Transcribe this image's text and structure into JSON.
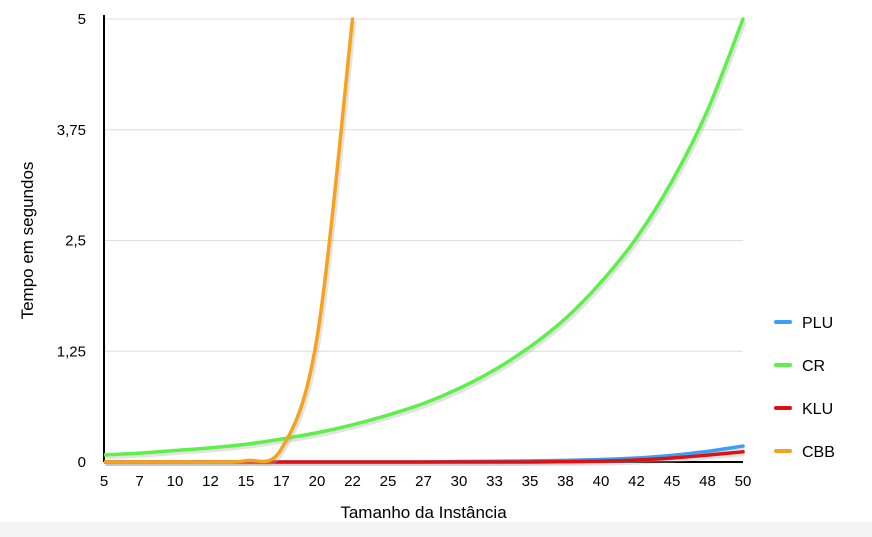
{
  "chart_data": {
    "type": "line",
    "title": "",
    "xlabel": "Tamanho da Instância",
    "ylabel": "Tempo em segundos",
    "categories": [
      "5",
      "7",
      "10",
      "12",
      "15",
      "17",
      "20",
      "22",
      "25",
      "27",
      "30",
      "33",
      "35",
      "38",
      "40",
      "42",
      "45",
      "48",
      "50"
    ],
    "y_ticks": [
      "0",
      "1,25",
      "2,5",
      "3,75",
      "5"
    ],
    "ylim": [
      0,
      5
    ],
    "grid": true,
    "legend_position": "right",
    "series": [
      {
        "name": "PLU",
        "color": "#3a9ff5",
        "values": [
          0.0,
          0.0,
          0.0,
          0.0,
          0.0,
          0.0,
          0.0,
          0.0,
          0.0,
          0.0,
          0.005,
          0.008,
          0.012,
          0.018,
          0.028,
          0.045,
          0.075,
          0.12,
          0.18
        ]
      },
      {
        "name": "CR",
        "color": "#5cf048",
        "values": [
          0.08,
          0.1,
          0.13,
          0.16,
          0.2,
          0.26,
          0.33,
          0.42,
          0.53,
          0.66,
          0.83,
          1.04,
          1.3,
          1.62,
          2.03,
          2.53,
          3.17,
          3.97,
          5.0
        ]
      },
      {
        "name": "KLU",
        "color": "#e01010",
        "values": [
          0.0,
          0.0,
          0.0,
          0.0,
          0.0,
          0.0,
          0.0,
          0.0,
          0.0,
          0.0,
          0.0,
          0.0,
          0.0,
          0.004,
          0.01,
          0.022,
          0.045,
          0.078,
          0.115
        ]
      },
      {
        "name": "CBB",
        "color": "#f7a21c",
        "values": [
          0.0,
          0.0,
          0.0,
          0.0,
          0.015,
          0.15,
          1.4,
          5.0,
          null,
          null,
          null,
          null,
          null,
          null,
          null,
          null,
          null,
          null,
          null
        ]
      }
    ]
  }
}
